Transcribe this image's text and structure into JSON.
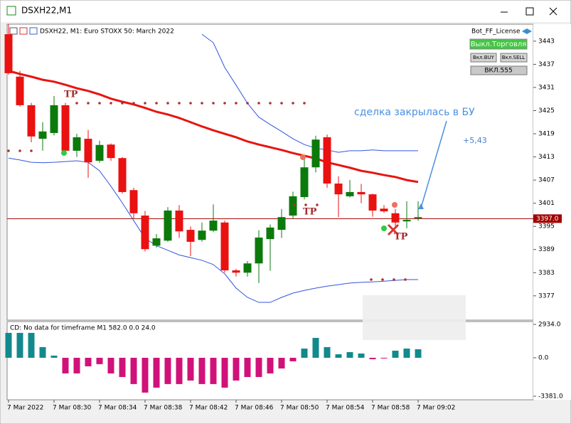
{
  "window": {
    "title": "DSXH22,M1"
  },
  "panel": {
    "license": "Bot_FF_License",
    "buttons": [
      "Выкл.Торговля",
      "Вкл.BUY",
      "Вкл.SELL",
      "ВКЛ.555"
    ]
  },
  "annotations": {
    "note": "сделка закрылась в БУ",
    "profit": "+5,43",
    "tp": [
      "TP",
      "TP",
      "TP"
    ]
  },
  "chart_data": [
    {
      "type": "candlestick",
      "title": "DSXH22, M1:  Euro STOXX 50: March 2022",
      "categories": [
        "7 Mar 2022",
        null,
        null,
        null,
        "7 Mar 08:30",
        null,
        null,
        null,
        "7 Mar 08:34",
        null,
        null,
        null,
        "7 Mar 08:38",
        null,
        null,
        null,
        "7 Mar 08:42",
        null,
        null,
        null,
        "7 Mar 08:46",
        null,
        null,
        null,
        "7 Mar 08:50",
        null,
        null,
        null,
        "7 Mar 08:54",
        null,
        null,
        null,
        "7 Mar 08:58",
        null,
        null,
        null,
        "7 Mar 09:02"
      ],
      "open": [
        3444.8,
        3433.8,
        3426.4,
        3417.7,
        3419.2,
        3426.4,
        3414.6,
        3417.7,
        3412.0,
        3416.2,
        3412.7,
        3404.4,
        3397.8,
        3390.0,
        3391.3,
        3399.1,
        3394.1,
        3391.5,
        3393.9,
        3396.0,
        3383.6,
        3383.0,
        3385.4,
        3391.7,
        3394.1,
        3397.8,
        3402.6,
        3410.3,
        3418.1,
        3406.1,
        3402.8,
        3403.9,
        3403.3,
        3399.6,
        3398.4,
        3396.3,
        3397.1
      ],
      "high": [
        3447.4,
        3435.3,
        3427.0,
        3422.0,
        3428.8,
        3427.0,
        3419.0,
        3420.0,
        3417.2,
        3416.5,
        3413.0,
        3405.0,
        3399.0,
        3393.0,
        3400.0,
        3400.5,
        3395.0,
        3396.0,
        3400.7,
        3396.5,
        3384.0,
        3386.0,
        3394.0,
        3395.5,
        3399.5,
        3404.0,
        3413.0,
        3418.5,
        3418.8,
        3408.0,
        3407.0,
        3406.0,
        3403.5,
        3400.5,
        3399.5,
        3401.5,
        3401.5
      ],
      "low": [
        3434.3,
        3426.0,
        3416.8,
        3414.6,
        3418.6,
        3414.0,
        3413.0,
        3407.6,
        3411.5,
        3412.0,
        3403.5,
        3397.0,
        3388.5,
        3389.5,
        3391.0,
        3392.0,
        3387.3,
        3391.0,
        3393.5,
        3383.0,
        3382.0,
        3382.0,
        3380.3,
        3383.5,
        3392.0,
        3397.0,
        3402.0,
        3409.0,
        3405.0,
        3397.4,
        3402.5,
        3401.0,
        3397.5,
        3398.5,
        3394.5,
        3394.5,
        3396.5
      ],
      "close": [
        3434.7,
        3426.4,
        3418.3,
        3419.6,
        3426.4,
        3414.6,
        3418.1,
        3411.6,
        3416.1,
        3412.7,
        3403.9,
        3398.4,
        3389.1,
        3391.9,
        3399.1,
        3393.7,
        3391.0,
        3393.9,
        3396.5,
        3383.6,
        3383.0,
        3385.4,
        3392.1,
        3394.7,
        3397.4,
        3402.8,
        3410.3,
        3417.5,
        3406.1,
        3403.3,
        3403.9,
        3403.3,
        3399.1,
        3398.9,
        3396.0,
        3396.7,
        3397.4
      ],
      "up_color": "#0b7a0b",
      "down_color": "#ea1111",
      "lines": [
        {
          "color": "#e8140e",
          "width": 3,
          "values": [
            3435.3,
            3434.5,
            3433.8,
            3433.0,
            3432.5,
            3431.7,
            3430.8,
            3430.1,
            3429.2,
            3428.1,
            3427.3,
            3426.6,
            3425.7,
            3424.7,
            3424.0,
            3423.1,
            3422.0,
            3420.9,
            3419.9,
            3419.0,
            3418.1,
            3417.0,
            3416.2,
            3415.5,
            3414.8,
            3414.0,
            3413.3,
            3412.6,
            3411.6,
            3410.9,
            3410.2,
            3409.4,
            3408.9,
            3408.3,
            3407.8,
            3407.0,
            3406.5
          ]
        },
        {
          "color": "#3355dd",
          "width": 1,
          "values": [
            null,
            null,
            null,
            null,
            null,
            null,
            null,
            null,
            null,
            null,
            null,
            null,
            null,
            null,
            null,
            null,
            null,
            3444.8,
            3442.6,
            3436.2,
            3431.6,
            3426.9,
            3423.3,
            3421.4,
            3419.6,
            3417.7,
            3416.2,
            3415.3,
            3414.8,
            3414.2,
            3414.6,
            3414.6,
            3414.8,
            3414.6,
            3414.6,
            3414.6,
            3414.6
          ]
        },
        {
          "color": "#3355dd",
          "width": 1,
          "values": [
            3412.7,
            3412.2,
            3411.6,
            3411.5,
            3411.6,
            3411.8,
            3412.0,
            3411.6,
            3409.4,
            3405.4,
            3401.1,
            3396.5,
            3391.9,
            3390.0,
            3388.8,
            3387.6,
            3386.9,
            3386.2,
            3385.1,
            3382.7,
            3379.0,
            3376.6,
            3375.3,
            3375.3,
            3376.6,
            3377.7,
            3378.4,
            3379.0,
            3379.5,
            3379.9,
            3380.3,
            3380.5,
            3380.6,
            3380.8,
            3381.0,
            3381.2,
            3381.2
          ]
        }
      ],
      "price_line": {
        "value": 3397,
        "label": "3397.0",
        "color": "#a00000"
      },
      "ylim": [
        3370.7,
        3447.4
      ],
      "yticks": [
        3443,
        3437,
        3431,
        3425,
        3419,
        3413,
        3407,
        3401,
        3395,
        3389,
        3383,
        3377
      ]
    },
    {
      "type": "bar",
      "title": "CD: No data for timeframe M1 582.0 0.0 24.0",
      "values": [
        2190,
        2190,
        2190,
        940,
        190,
        -1375,
        -1375,
        -750,
        -560,
        -1375,
        -1690,
        -2310,
        -3060,
        -2625,
        -2310,
        -2310,
        -2000,
        -2310,
        -2310,
        -2625,
        -2000,
        -1690,
        -1690,
        -1375,
        -940,
        -310,
        810,
        1750,
        940,
        310,
        500,
        375,
        -125,
        -60,
        625,
        810,
        750
      ],
      "positive_color": "#12898c",
      "negative_color": "#d0117a",
      "ylim": [
        -3693,
        3184
      ],
      "yticks": [
        {
          "value": 2934,
          "label": "2934.0"
        },
        {
          "value": 0,
          "label": "0.0"
        },
        {
          "value": -3381,
          "label": "-3381.0"
        }
      ]
    }
  ]
}
